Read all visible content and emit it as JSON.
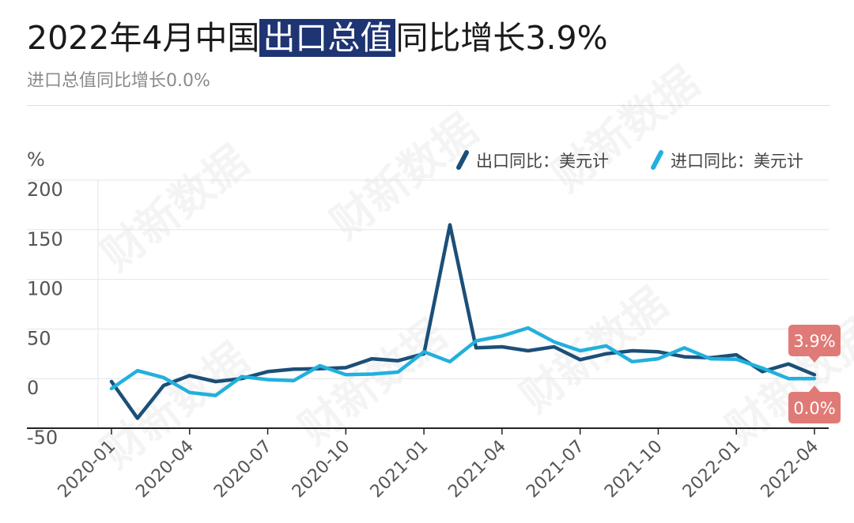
{
  "header": {
    "title_part1": "2022年4月中国",
    "title_highlight": "出口总值",
    "title_part2": "同比增长3.9%",
    "subtitle": "进口总值同比增长0.0%"
  },
  "watermark": "财新数据",
  "colors": {
    "export": "#1b4f78",
    "import": "#22b0dd",
    "label_bg": "#e07a76",
    "highlight_bg": "#1e3473"
  },
  "chart_data": {
    "type": "line",
    "ylabel": "%",
    "ylim": [
      -50,
      200
    ],
    "yticks": [
      200,
      150,
      100,
      50,
      0,
      -50
    ],
    "grid": true,
    "legend_position": "top-right",
    "x": [
      "2020-01",
      "2020-02",
      "2020-03",
      "2020-04",
      "2020-05",
      "2020-06",
      "2020-07",
      "2020-08",
      "2020-09",
      "2020-10",
      "2020-11",
      "2020-12",
      "2021-01",
      "2021-02",
      "2021-03",
      "2021-04",
      "2021-05",
      "2021-06",
      "2021-07",
      "2021-08",
      "2021-09",
      "2021-10",
      "2021-11",
      "2021-12",
      "2022-01",
      "2022-02",
      "2022-03",
      "2022-04"
    ],
    "xtick_labels": [
      "2020-01",
      "2020-04",
      "2020-07",
      "2020-10",
      "2021-01",
      "2021-04",
      "2021-07",
      "2021-10",
      "2022-01",
      "2022-04"
    ],
    "series": [
      {
        "name": "出口同比：美元计",
        "color": "#1b4f78",
        "values": [
          -3,
          -40,
          -7,
          3,
          -3,
          0,
          7,
          9.5,
          10,
          11,
          20,
          18,
          25,
          154.9,
          31,
          32,
          28,
          32,
          19,
          25,
          28,
          27,
          22,
          21,
          24,
          7,
          14.7,
          3.9
        ]
      },
      {
        "name": "进口同比：美元计",
        "color": "#22b0dd",
        "values": [
          -10,
          8,
          1,
          -14,
          -17,
          2,
          -1,
          -2,
          13,
          4,
          4.5,
          6.5,
          27,
          17,
          38,
          43,
          51,
          37,
          28,
          33,
          17,
          20,
          31,
          20,
          19.5,
          10.5,
          0,
          0.0
        ]
      }
    ],
    "annotations": [
      {
        "text": "3.9%",
        "series": 0,
        "index": 27,
        "position": "above"
      },
      {
        "text": "0.0%",
        "series": 1,
        "index": 27,
        "position": "below"
      }
    ]
  }
}
